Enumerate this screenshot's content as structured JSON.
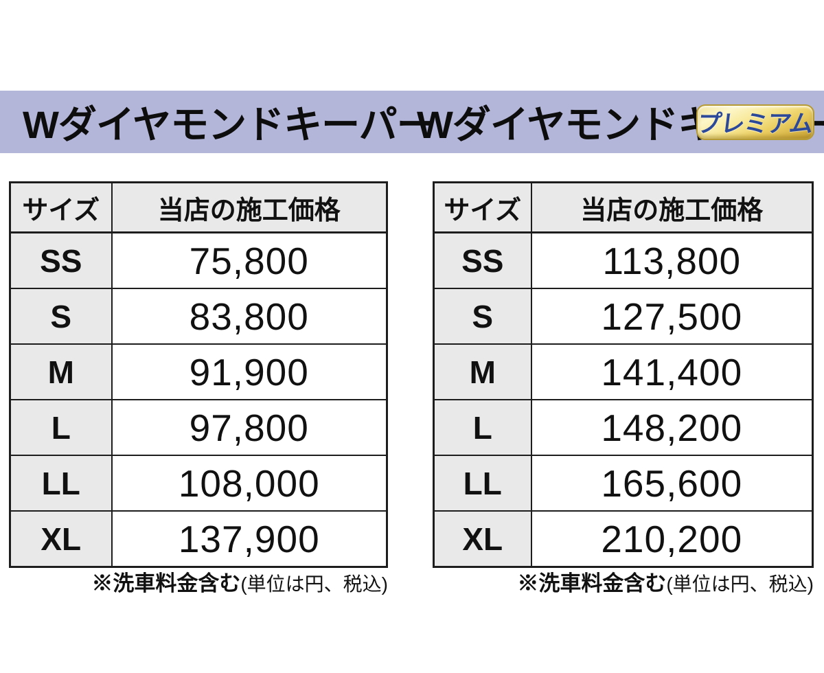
{
  "banner": {
    "background_color": "#b4b6d9",
    "standard_title": "Wダイヤモンドキーパー",
    "premium_title": "Wダイヤモンドキーパー",
    "premium_badge_label": "プレミアム",
    "premium_badge_text_color": "#2b4899",
    "premium_badge_gold_light": "#fdf6c8",
    "premium_badge_gold_dark": "#c9a232"
  },
  "tables": [
    {
      "headers": [
        "サイズ",
        "当店の施工価格"
      ],
      "rows": [
        [
          "SS",
          "75,800"
        ],
        [
          "S",
          "83,800"
        ],
        [
          "M",
          "91,900"
        ],
        [
          "L",
          "97,800"
        ],
        [
          "LL",
          "108,000"
        ],
        [
          "XL",
          "137,900"
        ]
      ],
      "footnote_bold": "※洗車料金含む",
      "footnote_paren": "(単位は円、税込)"
    },
    {
      "headers": [
        "サイズ",
        "当店の施工価格"
      ],
      "rows": [
        [
          "SS",
          "113,800"
        ],
        [
          "S",
          "127,500"
        ],
        [
          "M",
          "141,400"
        ],
        [
          "L",
          "148,200"
        ],
        [
          "LL",
          "165,600"
        ],
        [
          "XL",
          "210,200"
        ]
      ],
      "footnote_bold": "※洗車料金含む",
      "footnote_paren": "(単位は円、税込)"
    }
  ],
  "colors": {
    "page_background": "#ffffff",
    "table_header_background": "#e9e9e9",
    "table_border": "#1d1d1d",
    "text": "#111111"
  }
}
